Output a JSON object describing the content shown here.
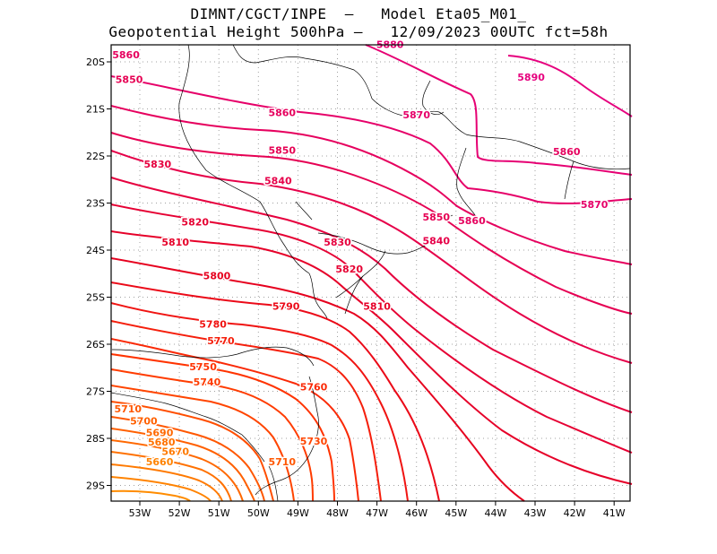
{
  "title_line1": "DIMNT/CGCT/INPE  –   Model Eta05_M01_",
  "title_line2": "Geopotential Height 500hPa –   12/09/2023 00UTC fct=58h",
  "lon_ticks": [
    "53W",
    "52W",
    "51W",
    "50W",
    "49W",
    "48W",
    "47W",
    "46W",
    "45W",
    "44W",
    "43W",
    "42W",
    "41W"
  ],
  "lat_ticks": [
    "20S",
    "21S",
    "22S",
    "23S",
    "24S",
    "25S",
    "26S",
    "27S",
    "28S",
    "29S"
  ],
  "contour_labels": [
    {
      "text": "5880",
      "lon": -46.67,
      "lat": -19.7,
      "level": 5880
    },
    {
      "text": "5890",
      "lon": -43.1,
      "lat": -20.4,
      "level": 5890
    },
    {
      "text": "5860",
      "lon": -53.35,
      "lat": -19.92,
      "level": 5860
    },
    {
      "text": "5850",
      "lon": -53.27,
      "lat": -20.45,
      "level": 5850
    },
    {
      "text": "5860",
      "lon": -49.4,
      "lat": -21.15,
      "level": 5860
    },
    {
      "text": "5870",
      "lon": -46.0,
      "lat": -21.2,
      "level": 5870
    },
    {
      "text": "5850",
      "lon": -49.4,
      "lat": -21.95,
      "level": 5850
    },
    {
      "text": "5860",
      "lon": -42.2,
      "lat": -21.98,
      "level": 5860
    },
    {
      "text": "5830",
      "lon": -52.55,
      "lat": -22.25,
      "level": 5830
    },
    {
      "text": "5840",
      "lon": -49.5,
      "lat": -22.6,
      "level": 5840
    },
    {
      "text": "5870",
      "lon": -41.5,
      "lat": -23.1,
      "level": 5870
    },
    {
      "text": "5850",
      "lon": -45.5,
      "lat": -23.37,
      "level": 5850
    },
    {
      "text": "5860",
      "lon": -44.6,
      "lat": -23.45,
      "level": 5860
    },
    {
      "text": "5820",
      "lon": -51.6,
      "lat": -23.48,
      "level": 5820
    },
    {
      "text": "5810",
      "lon": -52.1,
      "lat": -23.9,
      "level": 5810
    },
    {
      "text": "5830",
      "lon": -48.0,
      "lat": -23.9,
      "level": 5830
    },
    {
      "text": "5840",
      "lon": -45.5,
      "lat": -23.88,
      "level": 5840
    },
    {
      "text": "5800",
      "lon": -51.05,
      "lat": -24.62,
      "level": 5800
    },
    {
      "text": "5820",
      "lon": -47.7,
      "lat": -24.48,
      "level": 5820
    },
    {
      "text": "5790",
      "lon": -49.3,
      "lat": -25.27,
      "level": 5790
    },
    {
      "text": "5810",
      "lon": -47.0,
      "lat": -25.27,
      "level": 5810
    },
    {
      "text": "5780",
      "lon": -51.15,
      "lat": -25.65,
      "level": 5780
    },
    {
      "text": "5770",
      "lon": -50.95,
      "lat": -26.0,
      "level": 5770
    },
    {
      "text": "5750",
      "lon": -51.4,
      "lat": -26.55,
      "level": 5750
    },
    {
      "text": "5740",
      "lon": -51.3,
      "lat": -26.88,
      "level": 5740
    },
    {
      "text": "5760",
      "lon": -48.6,
      "lat": -26.98,
      "level": 5760
    },
    {
      "text": "5710",
      "lon": -53.3,
      "lat": -27.45,
      "level": 5710
    },
    {
      "text": "5700",
      "lon": -52.9,
      "lat": -27.7,
      "level": 5700
    },
    {
      "text": "5690",
      "lon": -52.5,
      "lat": -27.95,
      "level": 5690
    },
    {
      "text": "5730",
      "lon": -48.6,
      "lat": -28.13,
      "level": 5730
    },
    {
      "text": "5680",
      "lon": -52.45,
      "lat": -28.15,
      "level": 5680
    },
    {
      "text": "5670",
      "lon": -52.1,
      "lat": -28.35,
      "level": 5670
    },
    {
      "text": "5660",
      "lon": -52.5,
      "lat": -28.57,
      "level": 5660
    },
    {
      "text": "5710",
      "lon": -49.4,
      "lat": -28.57,
      "level": 5710
    }
  ],
  "colors": {
    "frame": "#000000",
    "grid": "#a0a0a0",
    "coast": "#000000",
    "level_5650": "#ff8c00",
    "level_5750": "#ff3300",
    "level_5800": "#e6001e",
    "level_5890": "#e6007e"
  }
}
